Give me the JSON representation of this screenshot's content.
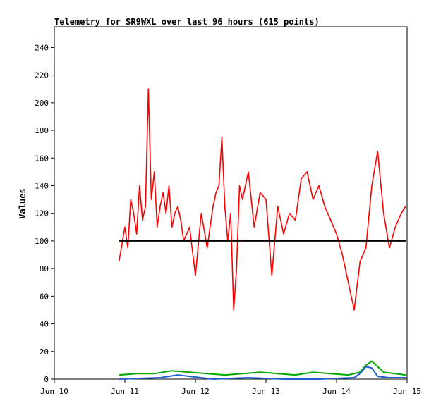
{
  "chart_data": {
    "type": "line",
    "title": "Telemetry for SR9WXL over last 96 hours (615 points)",
    "xlabel": "",
    "ylabel": "Values",
    "xlim": [
      "Jun 10 00:00",
      "Jun 15 00:00"
    ],
    "ylim": [
      0,
      255
    ],
    "xticks": [
      "Jun 10",
      "Jun 11",
      "Jun 12",
      "Jun 13",
      "Jun 14",
      "Jun 15"
    ],
    "yticks": [
      0,
      20,
      40,
      60,
      80,
      100,
      120,
      140,
      160,
      180,
      200,
      220,
      240
    ],
    "grid": false,
    "legend": "none",
    "colors": {
      "red": "#ff0000",
      "black": "#000000",
      "green": "#00aa00",
      "blue": "#1f5fd0",
      "axis": "#000000"
    },
    "series": [
      {
        "color": "red",
        "x": [
          "Jun 10 22:00",
          "Jun 11 00:00",
          "Jun 11 01:00",
          "Jun 11 02:00",
          "Jun 11 03:00",
          "Jun 11 04:00",
          "Jun 11 05:00",
          "Jun 11 06:00",
          "Jun 11 07:00",
          "Jun 11 08:00",
          "Jun 11 09:00",
          "Jun 11 10:00",
          "Jun 11 11:00",
          "Jun 11 12:00",
          "Jun 11 13:00",
          "Jun 11 14:00",
          "Jun 11 15:00",
          "Jun 11 16:00",
          "Jun 11 17:00",
          "Jun 11 18:00",
          "Jun 11 19:00",
          "Jun 11 20:00",
          "Jun 11 22:00",
          "Jun 12 00:00",
          "Jun 12 02:00",
          "Jun 12 04:00",
          "Jun 12 05:00",
          "Jun 12 06:00",
          "Jun 12 07:00",
          "Jun 12 08:00",
          "Jun 12 09:00",
          "Jun 12 10:00",
          "Jun 12 11:00",
          "Jun 12 12:00",
          "Jun 12 13:00",
          "Jun 12 14:00",
          "Jun 12 15:00",
          "Jun 12 16:00",
          "Jun 12 18:00",
          "Jun 12 20:00",
          "Jun 12 22:00",
          "Jun 13 00:00",
          "Jun 13 02:00",
          "Jun 13 04:00",
          "Jun 13 06:00",
          "Jun 13 08:00",
          "Jun 13 10:00",
          "Jun 13 12:00",
          "Jun 13 14:00",
          "Jun 13 16:00",
          "Jun 13 18:00",
          "Jun 13 20:00",
          "Jun 13 22:00",
          "Jun 14 00:00",
          "Jun 14 02:00",
          "Jun 14 04:00",
          "Jun 14 06:00",
          "Jun 14 08:00",
          "Jun 14 10:00",
          "Jun 14 12:00",
          "Jun 14 14:00",
          "Jun 14 16:00",
          "Jun 14 18:00",
          "Jun 14 20:00",
          "Jun 14 22:00",
          "Jun 14 23:30"
        ],
        "y": [
          85,
          110,
          95,
          130,
          120,
          105,
          140,
          115,
          125,
          210,
          130,
          150,
          110,
          125,
          135,
          120,
          140,
          110,
          120,
          125,
          115,
          100,
          110,
          75,
          120,
          95,
          110,
          125,
          135,
          140,
          175,
          125,
          100,
          120,
          50,
          80,
          140,
          130,
          150,
          110,
          135,
          130,
          75,
          125,
          105,
          120,
          115,
          145,
          150,
          130,
          140,
          125,
          115,
          105,
          90,
          70,
          50,
          85,
          95,
          140,
          165,
          120,
          95,
          110,
          120,
          125
        ]
      },
      {
        "color": "black",
        "x": [
          "Jun 10 22:00",
          "Jun 14 23:30"
        ],
        "y": [
          100,
          100
        ]
      },
      {
        "color": "green",
        "x": [
          "Jun 10 22:00",
          "Jun 11 04:00",
          "Jun 11 10:00",
          "Jun 11 16:00",
          "Jun 11 22:00",
          "Jun 12 04:00",
          "Jun 12 10:00",
          "Jun 12 16:00",
          "Jun 12 22:00",
          "Jun 13 04:00",
          "Jun 13 10:00",
          "Jun 13 16:00",
          "Jun 13 22:00",
          "Jun 14 04:00",
          "Jun 14 08:00",
          "Jun 14 10:00",
          "Jun 14 12:00",
          "Jun 14 16:00",
          "Jun 14 20:00",
          "Jun 14 23:30"
        ],
        "y": [
          3,
          4,
          4,
          6,
          5,
          4,
          3,
          4,
          5,
          4,
          3,
          5,
          4,
          3,
          5,
          10,
          13,
          5,
          4,
          3
        ]
      },
      {
        "color": "blue",
        "x": [
          "Jun 10 22:00",
          "Jun 11 12:00",
          "Jun 11 18:00",
          "Jun 12 06:00",
          "Jun 12 18:00",
          "Jun 13 06:00",
          "Jun 13 18:00",
          "Jun 14 06:00",
          "Jun 14 08:00",
          "Jun 14 10:00",
          "Jun 14 12:00",
          "Jun 14 14:00",
          "Jun 14 18:00",
          "Jun 14 23:30"
        ],
        "y": [
          0,
          1,
          3,
          0,
          1,
          0,
          0,
          1,
          4,
          9,
          8,
          2,
          1,
          1
        ]
      }
    ]
  }
}
